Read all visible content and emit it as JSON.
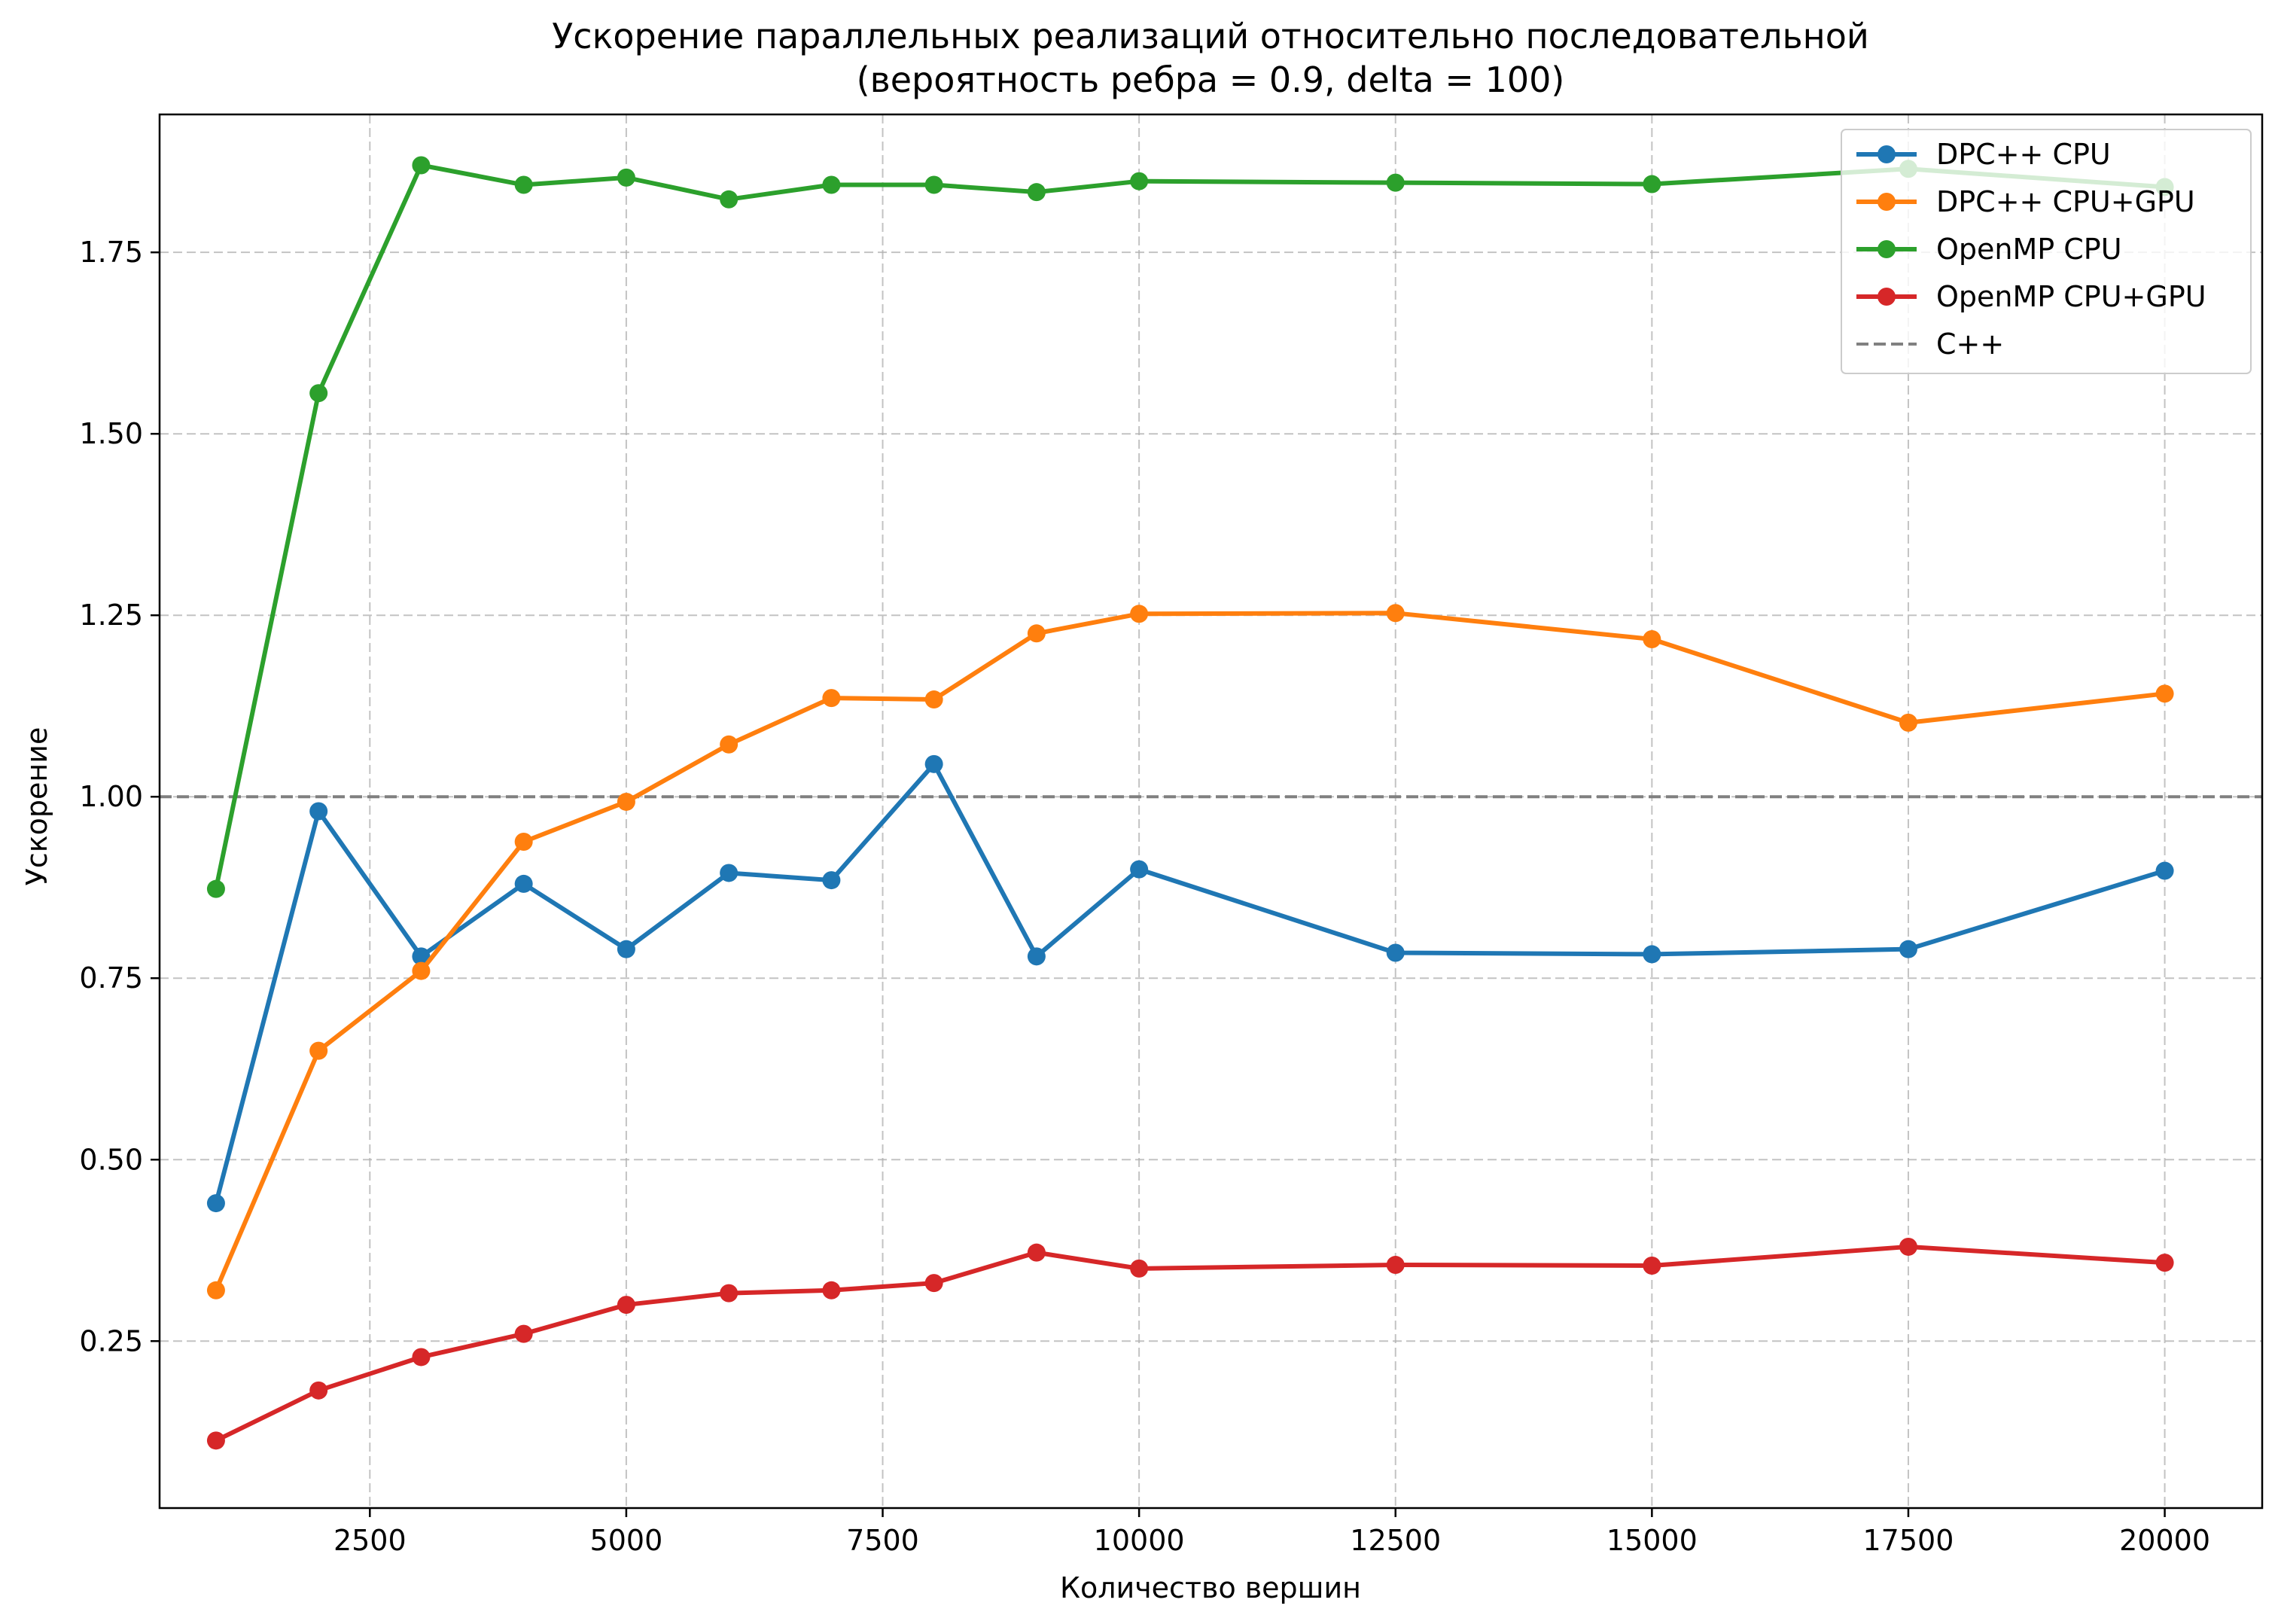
{
  "chart_data": {
    "type": "line",
    "title": "Ускорение параллельных реализаций относительно последовательной",
    "subtitle": "(вероятность ребра = 0.9, delta = 100)",
    "xlabel": "Количество вершин",
    "ylabel": "Ускорение",
    "xlim": [
      450,
      20950
    ],
    "ylim": [
      0.02,
      1.94
    ],
    "xticks": [
      2500,
      5000,
      7500,
      10000,
      12500,
      15000,
      17500,
      20000
    ],
    "yticks": [
      0.25,
      0.5,
      0.75,
      1.0,
      1.25,
      1.5,
      1.75
    ],
    "xtick_labels": [
      "2500",
      "5000",
      "7500",
      "10000",
      "12500",
      "15000",
      "17500",
      "20000"
    ],
    "ytick_labels": [
      "0.25",
      "0.50",
      "0.75",
      "1.00",
      "1.25",
      "1.50",
      "1.75"
    ],
    "grid": true,
    "legend_position": "top-right",
    "x": [
      1000,
      2000,
      3000,
      4000,
      5000,
      6000,
      7000,
      8000,
      9000,
      10000,
      12500,
      15000,
      17500,
      20000
    ],
    "series": [
      {
        "name": "DPC++ CPU",
        "color": "#1f77b4",
        "values": [
          0.44,
          0.98,
          0.78,
          0.88,
          0.79,
          0.895,
          0.885,
          1.045,
          0.78,
          0.9,
          0.785,
          0.783,
          0.79,
          0.898
        ]
      },
      {
        "name": "DPC++ CPU+GPU",
        "color": "#ff7f0e",
        "values": [
          0.32,
          0.65,
          0.76,
          0.938,
          0.993,
          1.072,
          1.136,
          1.134,
          1.225,
          1.252,
          1.253,
          1.217,
          1.102,
          1.142
        ]
      },
      {
        "name": "OpenMP CPU",
        "color": "#2ca02c",
        "values": [
          0.873,
          1.556,
          1.87,
          1.843,
          1.853,
          1.823,
          1.843,
          1.843,
          1.833,
          1.848,
          1.846,
          1.844,
          1.865,
          1.84
        ]
      },
      {
        "name": "OpenMP CPU+GPU",
        "color": "#d62728",
        "values": [
          0.113,
          0.182,
          0.228,
          0.26,
          0.3,
          0.316,
          0.32,
          0.33,
          0.372,
          0.35,
          0.355,
          0.354,
          0.38,
          0.358
        ]
      }
    ],
    "reference_line": {
      "name": "C++",
      "y": 1.0,
      "color": "#808080",
      "style": "dashed"
    }
  }
}
